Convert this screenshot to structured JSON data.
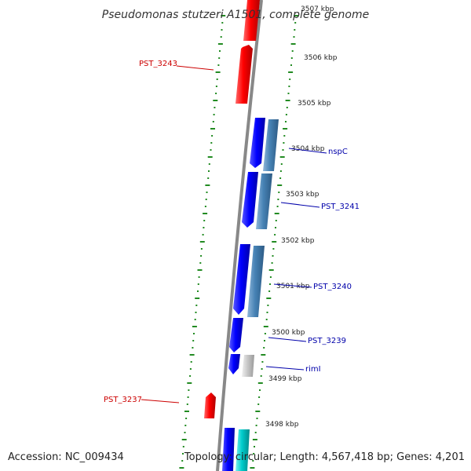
{
  "title": "Pseudomonas stutzeri A1501, complete genome",
  "top_partial_label": "3507 kbp",
  "footer": {
    "accession": "Accession: NC_009434",
    "summary": "Topology: circular; Length: 4,567,418 bp; Genes: 4,201"
  },
  "colors": {
    "reverse_gene": "#ff0000",
    "forward_gene": "#0000ff",
    "forward_gene_alt": "#4682b4",
    "rna_gene": "#c8c8c8",
    "cyan_gene": "#00cccc",
    "backbone": "#888888",
    "tick": "#228b22",
    "label_forward": "#0000aa",
    "label_reverse": "#cc0000"
  },
  "ticks": [
    {
      "label": "3506 kbp"
    },
    {
      "label": "3505 kbp"
    },
    {
      "label": "3504 kbp"
    },
    {
      "label": "3503 kbp"
    },
    {
      "label": "3502 kbp"
    },
    {
      "label": "3501 kbp"
    },
    {
      "label": "3500 kbp"
    },
    {
      "label": "3499 kbp"
    },
    {
      "label": "3498 kbp"
    }
  ],
  "gene_labels": [
    {
      "name": "PST_3243",
      "strand": "reverse"
    },
    {
      "name": "nspC",
      "strand": "forward"
    },
    {
      "name": "PST_3241",
      "strand": "forward"
    },
    {
      "name": "PST_3240",
      "strand": "forward"
    },
    {
      "name": "PST_3239",
      "strand": "forward"
    },
    {
      "name": "rimI",
      "strand": "forward"
    },
    {
      "name": "PST_3237",
      "strand": "reverse"
    }
  ]
}
